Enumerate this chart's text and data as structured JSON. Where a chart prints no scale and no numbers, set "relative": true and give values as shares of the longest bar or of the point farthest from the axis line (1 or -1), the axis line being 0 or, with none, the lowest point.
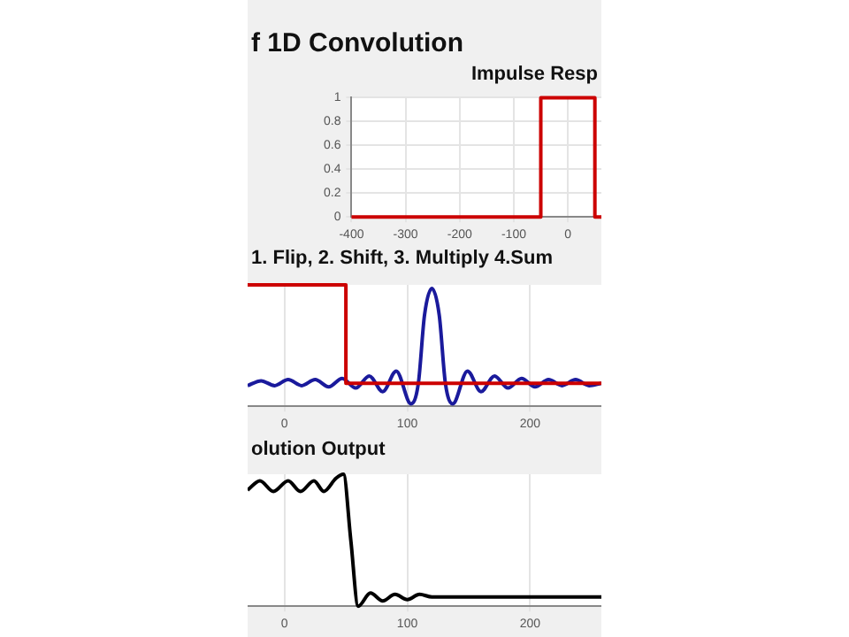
{
  "chart_data": [
    {
      "type": "other",
      "title": "f 1D Convolution"
    },
    {
      "type": "line",
      "title": "Impulse Resp",
      "x": [
        -400,
        -50,
        -50,
        50,
        50,
        62
      ],
      "series": [
        {
          "color": "#cc0000",
          "values": [
            0,
            0,
            1,
            1,
            0,
            0
          ]
        }
      ],
      "xlim": [
        -400,
        62
      ],
      "xticks": [
        -400,
        -300,
        -200,
        -100,
        0
      ],
      "ylim": [
        0,
        1
      ],
      "yticks": [
        0,
        0.2,
        0.4,
        0.6,
        0.8,
        1
      ],
      "grid": true,
      "marker": "none"
    },
    {
      "type": "line",
      "title": "1. Flip, 2. Shift, 3. Multiply 4.Sum",
      "relative": true,
      "series": [
        {
          "color": "#cc0000",
          "x": [
            -30,
            50,
            50,
            258
          ],
          "values": [
            1,
            1,
            0.19,
            0.19
          ]
        },
        {
          "color": "#1a1a9c",
          "x": [
            -30,
            -19,
            -8,
            3,
            14,
            25,
            36,
            47,
            58,
            69,
            80,
            91,
            103,
            109,
            114,
            120,
            126,
            131,
            137,
            149,
            160,
            171,
            182,
            193,
            204,
            215,
            226,
            237,
            248,
            258
          ],
          "values": [
            0.17,
            0.21,
            0.17,
            0.22,
            0.17,
            0.22,
            0.16,
            0.23,
            0.15,
            0.25,
            0.12,
            0.29,
            0.02,
            0.19,
            0.75,
            0.97,
            0.75,
            0.19,
            0.02,
            0.29,
            0.12,
            0.25,
            0.15,
            0.23,
            0.16,
            0.22,
            0.17,
            0.22,
            0.17,
            0.19
          ]
        }
      ],
      "xlim": [
        -30,
        258
      ],
      "xticks": [
        0,
        100,
        200
      ],
      "tick_labels": "x",
      "grid": "x",
      "marker": "none"
    },
    {
      "type": "line",
      "title": "olution Output",
      "relative": true,
      "series": [
        {
          "color": "#000000",
          "x": [
            -30,
            -20,
            -9,
            3,
            13,
            24,
            32,
            42,
            48,
            54,
            60,
            70,
            80,
            90,
            100,
            110,
            120,
            258
          ],
          "values": [
            0.88,
            0.95,
            0.87,
            0.95,
            0.87,
            0.95,
            0.87,
            0.97,
            1,
            0.5,
            0,
            0.1,
            0.04,
            0.09,
            0.05,
            0.09,
            0.07,
            0.07
          ]
        }
      ],
      "xlim": [
        -30,
        258
      ],
      "xticks": [
        0,
        100,
        200
      ],
      "tick_labels": "x",
      "grid": "x",
      "marker": "none"
    }
  ]
}
